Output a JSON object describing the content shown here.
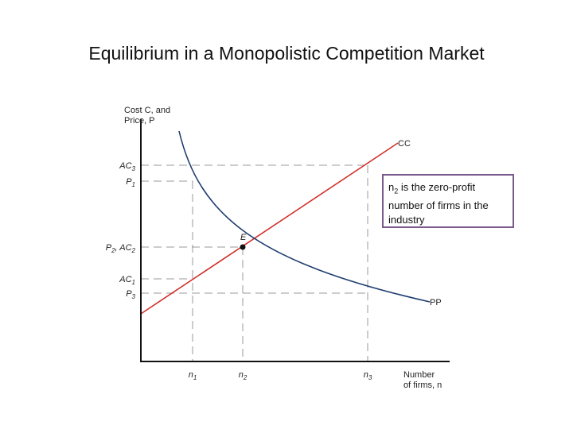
{
  "title": "Equilibrium in a Monopolistic Competition Market",
  "y_axis_label": [
    "Cost C, and",
    "Price, P"
  ],
  "x_axis_label": [
    "Number",
    "of firms, n"
  ],
  "y_labels": [
    [
      "AC",
      "3"
    ],
    [
      "P",
      "1"
    ],
    [
      "P",
      "2",
      ", AC",
      "2"
    ],
    [
      "AC",
      "1"
    ],
    [
      "P",
      "3"
    ]
  ],
  "x_labels": [
    [
      "n",
      "1"
    ],
    [
      "n",
      "2"
    ],
    [
      "n",
      "3"
    ]
  ],
  "curves": {
    "cc": "CC",
    "pp": "PP"
  },
  "point": "E",
  "note": [
    "n",
    "2",
    " is the zero-profit number of firms in the industry"
  ]
}
